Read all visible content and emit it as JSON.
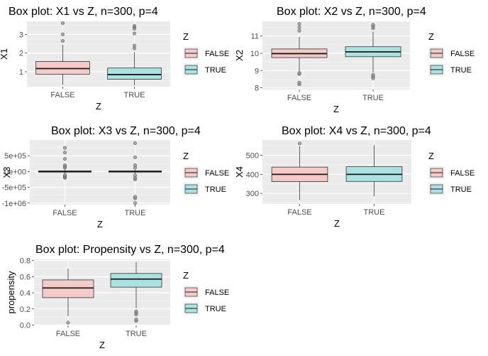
{
  "colors": {
    "false": "#f4cbc8",
    "true": "#ace2e2",
    "panel": "#ebebeb",
    "grid": "#ffffff",
    "outlier": "#8c8c8c"
  },
  "chart_data": [
    {
      "type": "box",
      "title": "Box plot: X1 vs Z, n=300, p=4",
      "xlabel": "Z",
      "ylabel": "X1",
      "categories": [
        "FALSE",
        "TRUE"
      ],
      "ylim": [
        0.2,
        3.7
      ],
      "yticks": [
        1,
        2,
        3
      ],
      "ytick_labels": [
        "1",
        "2",
        "3"
      ],
      "boxes": [
        {
          "q1": 0.87,
          "median": 1.17,
          "q3": 1.55,
          "whisker_low": 0.3,
          "whisker_high": 2.45,
          "outliers": [
            2.65,
            3.0,
            3.6
          ]
        },
        {
          "q1": 0.6,
          "median": 0.85,
          "q3": 1.2,
          "whisker_low": 0.28,
          "whisker_high": 2.05,
          "outliers": [
            2.25,
            2.4,
            3.05,
            3.3,
            3.4,
            3.45
          ]
        }
      ],
      "legend": {
        "title": "Z",
        "items": [
          "FALSE",
          "TRUE"
        ]
      }
    },
    {
      "type": "box",
      "title": "Box plot: X2 vs Z, n=300, p=4",
      "xlabel": "Z",
      "ylabel": "X2",
      "categories": [
        "FALSE",
        "TRUE"
      ],
      "ylim": [
        7.9,
        11.85
      ],
      "yticks": [
        8,
        9,
        10,
        11
      ],
      "ytick_labels": [
        "8",
        "9",
        "10",
        "11"
      ],
      "boxes": [
        {
          "q1": 9.75,
          "median": 9.98,
          "q3": 10.25,
          "whisker_low": 8.95,
          "whisker_high": 10.95,
          "outliers": [
            8.2,
            8.3,
            8.8,
            8.85,
            11.3,
            11.5,
            11.7
          ]
        },
        {
          "q1": 9.8,
          "median": 10.08,
          "q3": 10.38,
          "whisker_low": 8.9,
          "whisker_high": 11.25,
          "outliers": [
            8.55,
            8.65,
            8.75,
            11.45,
            11.55,
            11.65
          ]
        }
      ],
      "legend": {
        "title": "Z",
        "items": [
          "FALSE",
          "TRUE"
        ]
      }
    },
    {
      "type": "box",
      "title": "Box plot: X3 vs Z, n=300, p=4",
      "xlabel": "Z",
      "ylabel": "X3",
      "categories": [
        "FALSE",
        "TRUE"
      ],
      "ylim": [
        -1050000,
        1000000
      ],
      "yticks": [
        -1000000,
        -500000,
        0,
        500000
      ],
      "ytick_labels": [
        "-1e+06",
        "-5e+05",
        "0e+00",
        "5e+05"
      ],
      "boxes": [
        {
          "q1": -20000,
          "median": 0,
          "q3": 20000,
          "whisker_low": -60000,
          "whisker_high": 60000,
          "outliers": [
            -200000,
            -170000,
            -150000,
            -110000,
            120000,
            150000,
            200000,
            400000,
            600000,
            750000
          ]
        },
        {
          "q1": -20000,
          "median": 0,
          "q3": 20000,
          "whisker_low": -60000,
          "whisker_high": 60000,
          "outliers": [
            -1000000,
            -850000,
            -800000,
            -250000,
            -200000,
            -120000,
            120000,
            200000,
            450000,
            900000
          ]
        }
      ],
      "legend": {
        "title": "Z",
        "items": [
          "FALSE",
          "TRUE"
        ]
      }
    },
    {
      "type": "box",
      "title": "Box plot: X4 vs Z, n=300, p=4",
      "xlabel": "Z",
      "ylabel": "X4",
      "categories": [
        "FALSE",
        "TRUE"
      ],
      "ylim": [
        245,
        580
      ],
      "yticks": [
        300,
        400,
        500
      ],
      "ytick_labels": [
        "300",
        "400",
        "500"
      ],
      "boxes": [
        {
          "q1": 362,
          "median": 400,
          "q3": 438,
          "whisker_low": 265,
          "whisker_high": 548,
          "outliers": [
            562
          ]
        },
        {
          "q1": 363,
          "median": 400,
          "q3": 440,
          "whisker_low": 285,
          "whisker_high": 553,
          "outliers": []
        }
      ],
      "legend": {
        "title": "Z",
        "items": [
          "FALSE",
          "TRUE"
        ]
      }
    },
    {
      "type": "box",
      "title": "Box plot: Propensity vs Z, n=300, p=4",
      "xlabel": "Z",
      "ylabel": "propensity",
      "categories": [
        "FALSE",
        "TRUE"
      ],
      "ylim": [
        -0.005,
        0.815
      ],
      "yticks": [
        0,
        0.2,
        0.4,
        0.6,
        0.8
      ],
      "ytick_labels": [
        "0.0",
        "0.2",
        "0.4",
        "0.6",
        "0.8"
      ],
      "boxes": [
        {
          "q1": 0.34,
          "median": 0.46,
          "q3": 0.56,
          "whisker_low": 0.11,
          "whisker_high": 0.7,
          "outliers": [
            0.03
          ]
        },
        {
          "q1": 0.47,
          "median": 0.57,
          "q3": 0.64,
          "whisker_low": 0.21,
          "whisker_high": 0.78,
          "outliers": [
            0.05,
            0.07,
            0.13,
            0.15,
            0.17
          ]
        }
      ],
      "legend": {
        "title": "Z",
        "items": [
          "FALSE",
          "TRUE"
        ]
      }
    }
  ]
}
